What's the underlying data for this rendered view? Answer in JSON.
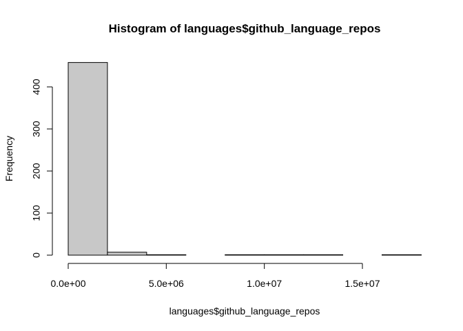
{
  "chart_data": {
    "type": "bar",
    "title": "Histogram of languages$github_language_repos",
    "xlabel": "languages$github_language_repos",
    "ylabel": "Frequency",
    "xlim": [
      0,
      18000000
    ],
    "ylim": [
      0,
      460
    ],
    "bin_width": 2000000,
    "bins": [
      {
        "start": 0,
        "end": 2000000,
        "count": 458
      },
      {
        "start": 2000000,
        "end": 4000000,
        "count": 7
      },
      {
        "start": 4000000,
        "end": 6000000,
        "count": 1
      },
      {
        "start": 6000000,
        "end": 8000000,
        "count": 0
      },
      {
        "start": 8000000,
        "end": 10000000,
        "count": 1
      },
      {
        "start": 10000000,
        "end": 12000000,
        "count": 1
      },
      {
        "start": 12000000,
        "end": 14000000,
        "count": 1
      },
      {
        "start": 14000000,
        "end": 16000000,
        "count": 0
      },
      {
        "start": 16000000,
        "end": 18000000,
        "count": 1
      }
    ],
    "x_ticks": [
      {
        "value": 0,
        "label": "0.0e+00"
      },
      {
        "value": 5000000,
        "label": "5.0e+06"
      },
      {
        "value": 10000000,
        "label": "1.0e+07"
      },
      {
        "value": 15000000,
        "label": "1.5e+07"
      }
    ],
    "y_ticks": [
      {
        "value": 0,
        "label": "0"
      },
      {
        "value": 100,
        "label": "100"
      },
      {
        "value": 200,
        "label": "200"
      },
      {
        "value": 300,
        "label": "300"
      },
      {
        "value": 400,
        "label": "400"
      }
    ],
    "grid": false,
    "legend": "none"
  }
}
